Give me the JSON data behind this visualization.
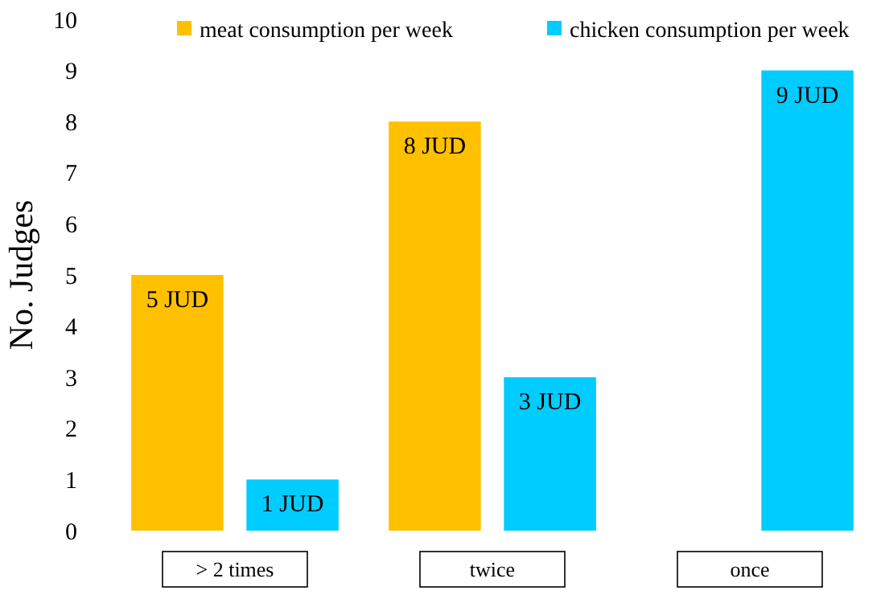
{
  "chart_data": {
    "type": "bar",
    "ylabel": "No. Judges",
    "categories": [
      "> 2 times",
      "twice",
      "once"
    ],
    "series": [
      {
        "name": "meat consumption per week",
        "color": "#ffc000",
        "values": [
          5,
          8,
          null
        ],
        "value_labels": [
          "5 JUD",
          "8 JUD",
          null
        ]
      },
      {
        "name": "chicken consumption per week",
        "color": "#00ccff",
        "values": [
          1,
          3,
          9
        ],
        "value_labels": [
          "1 JUD",
          "3 JUD",
          "9 JUD"
        ]
      }
    ],
    "ylim": [
      0,
      10
    ],
    "yticks": [
      0,
      1,
      2,
      3,
      4,
      5,
      6,
      7,
      8,
      9,
      10
    ],
    "grid": false,
    "legend": "top"
  }
}
